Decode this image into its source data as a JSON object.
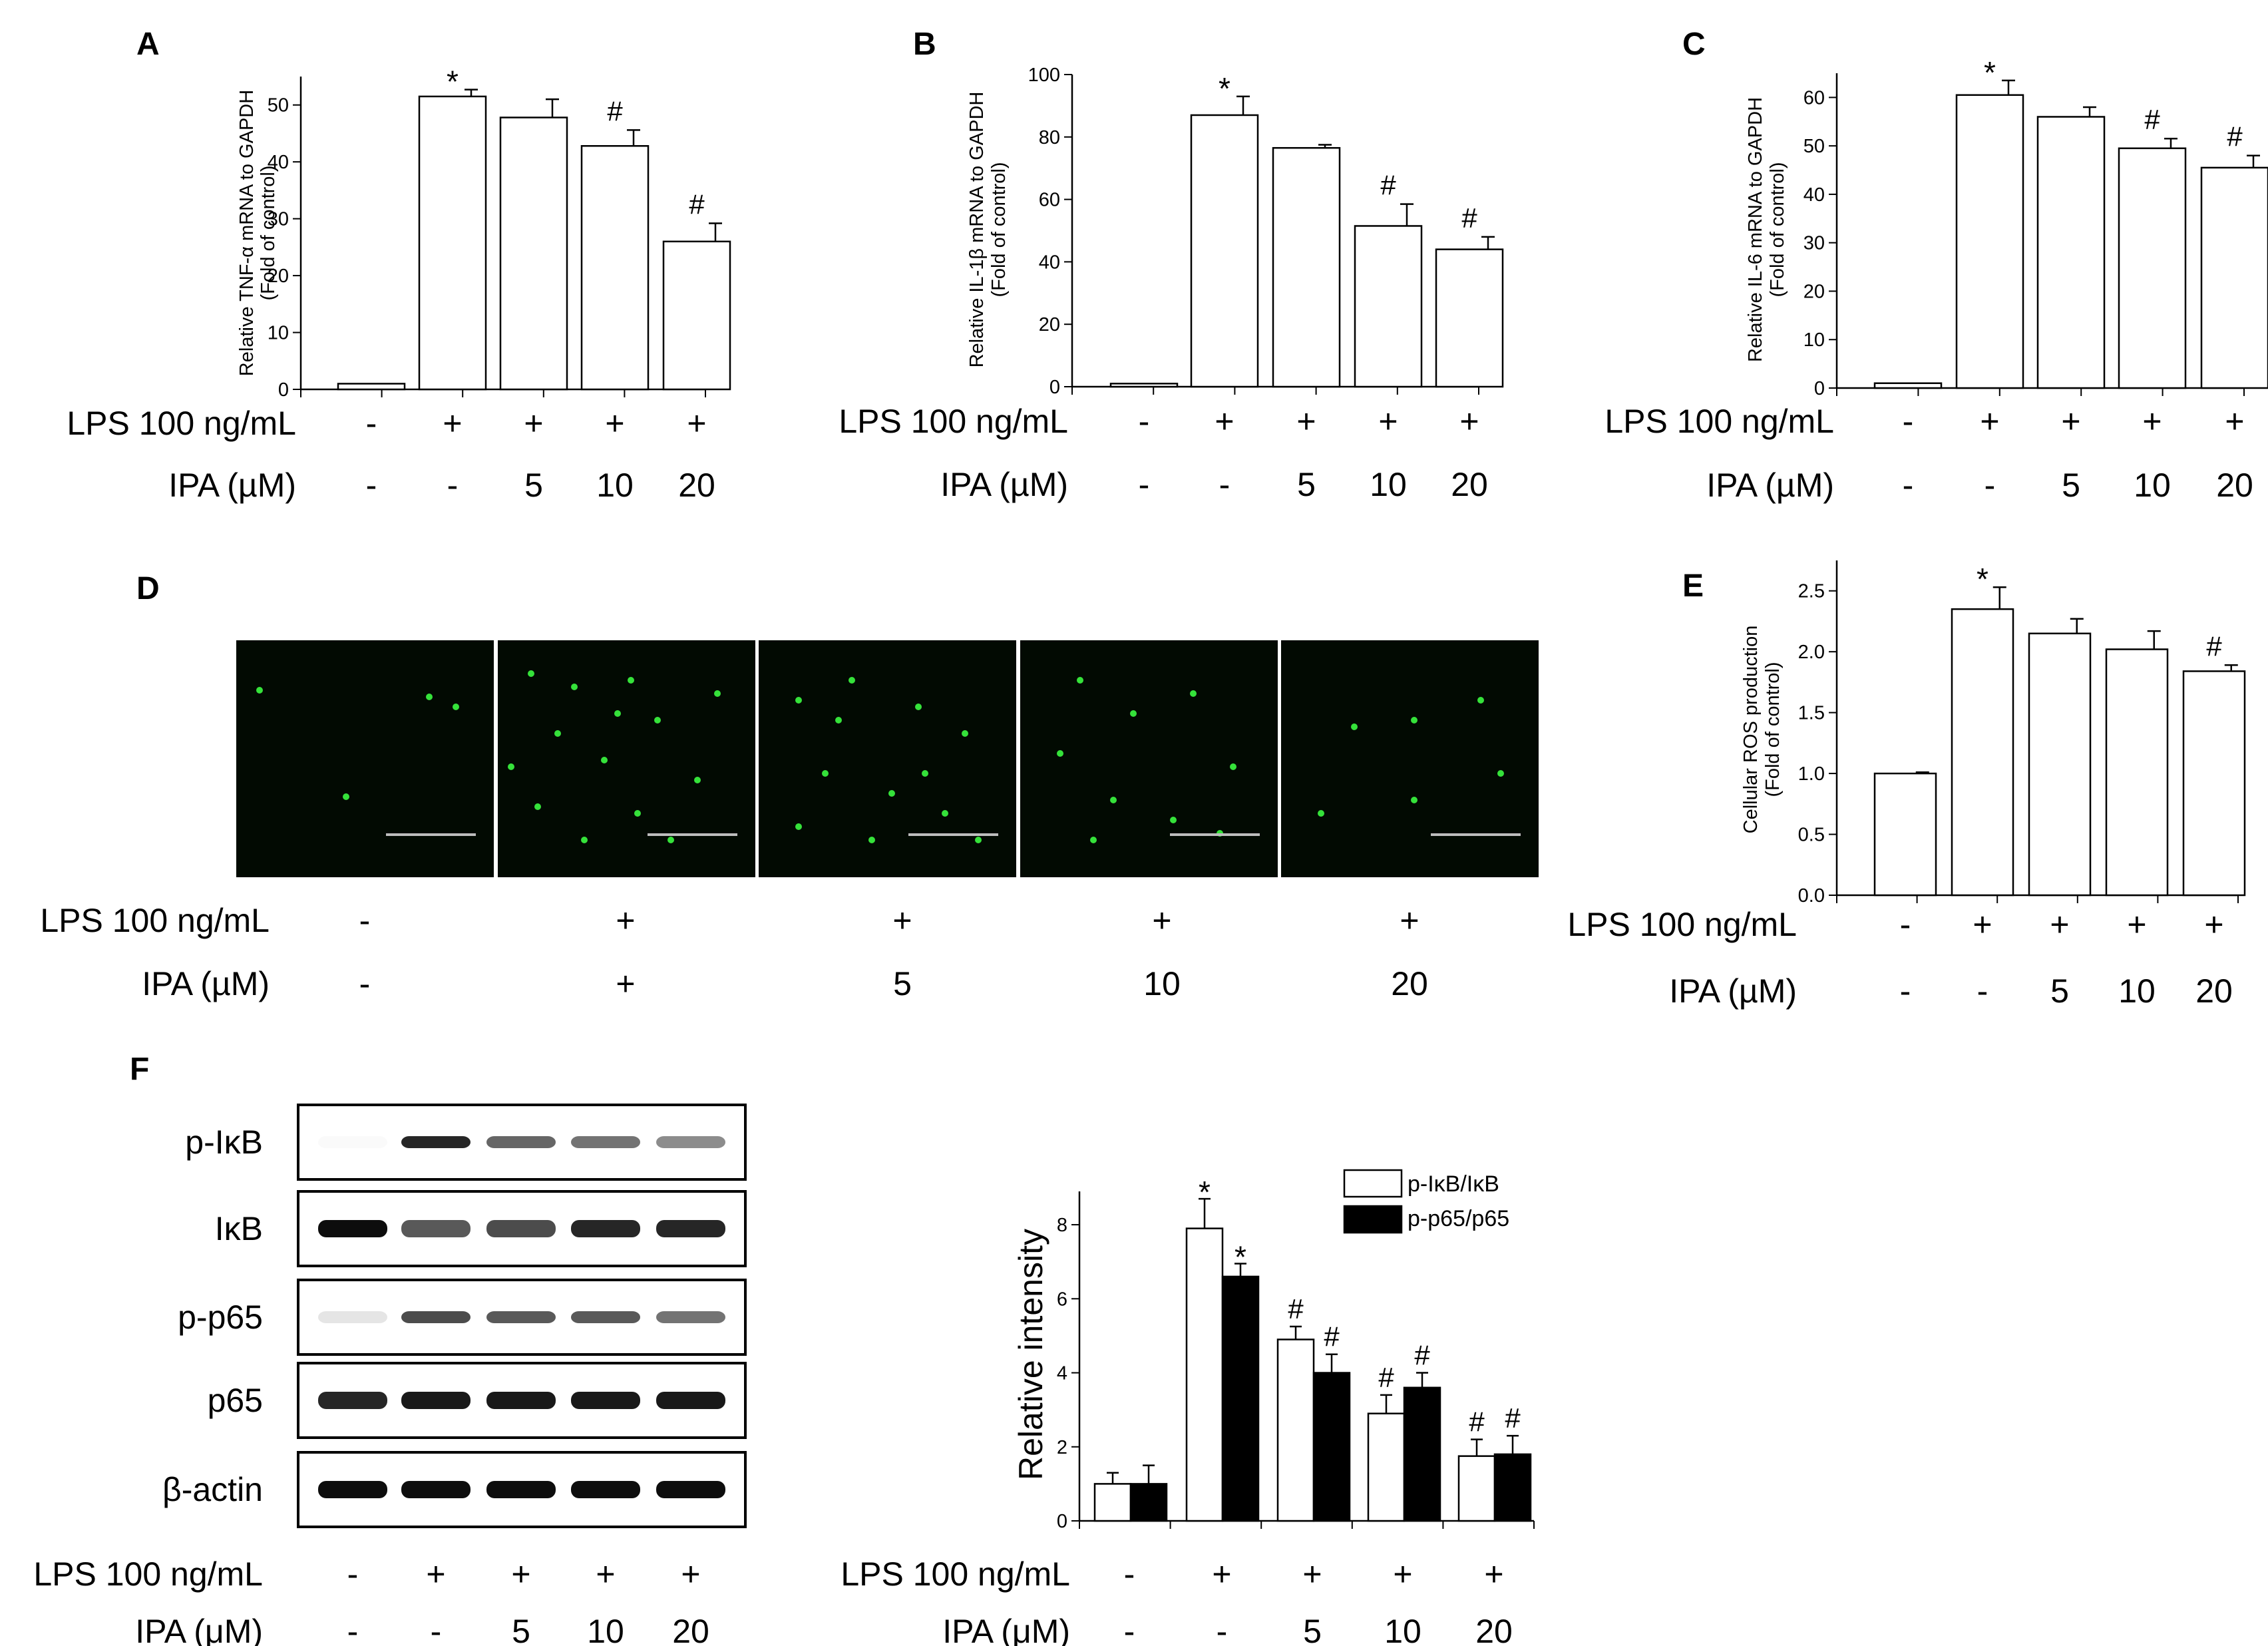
{
  "figure": {
    "panels": {
      "A": "A",
      "B": "B",
      "C": "C",
      "D": "D",
      "E": "E",
      "F": "F"
    },
    "lps_label": "LPS 100 ng/mL",
    "ipa_label": "IPA (µM)",
    "ipa_label_f": "IPA (μM)",
    "lps_row": [
      "-",
      "+",
      "+",
      "+",
      "+"
    ],
    "ipa_row": [
      "-",
      "-",
      "5",
      "10",
      "20"
    ],
    "ipa_row_d": [
      "-",
      "+",
      "5",
      "10",
      "20"
    ],
    "colors": {
      "bar_open": "#ffffff",
      "bar_filled": "#000000",
      "micrograph_bg": "#020a02",
      "fluorescence": "#35e23a",
      "scale_bar": "#bdbdbd"
    },
    "micrographs": {
      "count": 5,
      "description_icon": "fluorescence-micrograph"
    },
    "blot": {
      "rows": [
        "p-IκB",
        "IκB",
        "p-p65",
        "p65",
        "β-actin"
      ],
      "band_intensity": [
        [
          0.02,
          0.85,
          0.6,
          0.55,
          0.45
        ],
        [
          0.95,
          0.65,
          0.7,
          0.85,
          0.85
        ],
        [
          0.1,
          0.7,
          0.65,
          0.65,
          0.55
        ],
        [
          0.85,
          0.9,
          0.9,
          0.9,
          0.9
        ],
        [
          0.95,
          0.95,
          0.95,
          0.95,
          0.95
        ]
      ]
    }
  },
  "chart_data": [
    {
      "id": "A",
      "type": "bar",
      "ylabel_1": "Relative TNF-α mRNA to GAPDH",
      "ylabel_2": "(Fold of control)",
      "ylim": [
        0,
        55
      ],
      "yticks": [
        "0",
        "10",
        "20",
        "30",
        "40",
        "50"
      ],
      "ytick_values": [
        0,
        10,
        20,
        30,
        40,
        50
      ],
      "series": [
        {
          "values": [
            1,
            51.5,
            47.8,
            42.8,
            26
          ],
          "errors": [
            0,
            1.2,
            3.2,
            2.8,
            3.2
          ]
        }
      ],
      "marks": [
        "",
        "*",
        "",
        "#",
        "#"
      ]
    },
    {
      "id": "B",
      "type": "bar",
      "ylabel_1": "Relative IL-1β mRNA to GAPDH",
      "ylabel_2": "(Fold of control)",
      "ylim": [
        0,
        100
      ],
      "yticks": [
        "0",
        "20",
        "40",
        "60",
        "80",
        "100"
      ],
      "ytick_values": [
        0,
        20,
        40,
        60,
        80,
        100
      ],
      "series": [
        {
          "values": [
            1,
            87,
            76.5,
            51.5,
            44
          ],
          "errors": [
            0,
            6,
            1,
            7,
            4
          ]
        }
      ],
      "marks": [
        "",
        "*",
        "",
        "#",
        "#"
      ]
    },
    {
      "id": "C",
      "type": "bar",
      "ylabel_1": "Relative IL-6 mRNA to GAPDH",
      "ylabel_2": "(Fold of control)",
      "ylim": [
        0,
        65
      ],
      "yticks": [
        "0",
        "10",
        "20",
        "30",
        "40",
        "50",
        "60"
      ],
      "ytick_values": [
        0,
        10,
        20,
        30,
        40,
        50,
        60
      ],
      "series": [
        {
          "values": [
            1,
            60.5,
            56,
            49.5,
            45.5
          ],
          "errors": [
            0,
            3,
            2,
            2,
            2.5
          ]
        }
      ],
      "marks": [
        "",
        "*",
        "",
        "#",
        "#"
      ]
    },
    {
      "id": "E",
      "type": "bar",
      "ylabel_1": "Cellular ROS production",
      "ylabel_2": "(Fold of control)",
      "ylim": [
        0,
        2.75
      ],
      "yticks": [
        "0.0",
        "0.5",
        "1.0",
        "1.5",
        "2.0",
        "2.5"
      ],
      "ytick_values": [
        0,
        0.5,
        1.0,
        1.5,
        2.0,
        2.5
      ],
      "series": [
        {
          "values": [
            1.0,
            2.35,
            2.15,
            2.02,
            1.84
          ],
          "errors": [
            0.01,
            0.18,
            0.12,
            0.15,
            0.05
          ]
        }
      ],
      "marks": [
        "",
        "*",
        "",
        "",
        "#"
      ]
    },
    {
      "id": "F",
      "type": "bar",
      "ylabel": "Relative intensity",
      "ylim": [
        0,
        8.9
      ],
      "yticks": [
        "0",
        "2",
        "4",
        "6",
        "8"
      ],
      "ytick_values": [
        0,
        2,
        4,
        6,
        8
      ],
      "series": [
        {
          "name": "p-IκB/IκB",
          "values": [
            1.0,
            7.9,
            4.9,
            2.9,
            1.75
          ],
          "errors": [
            0.3,
            0.8,
            0.35,
            0.5,
            0.45
          ],
          "marks": [
            "",
            "*",
            "#",
            "#",
            "#"
          ]
        },
        {
          "name": "p-p65/p65",
          "values": [
            1.0,
            6.6,
            4.0,
            3.6,
            1.8
          ],
          "errors": [
            0.5,
            0.35,
            0.5,
            0.4,
            0.5
          ],
          "marks": [
            "",
            "*",
            "#",
            "#",
            "#"
          ]
        }
      ]
    }
  ]
}
